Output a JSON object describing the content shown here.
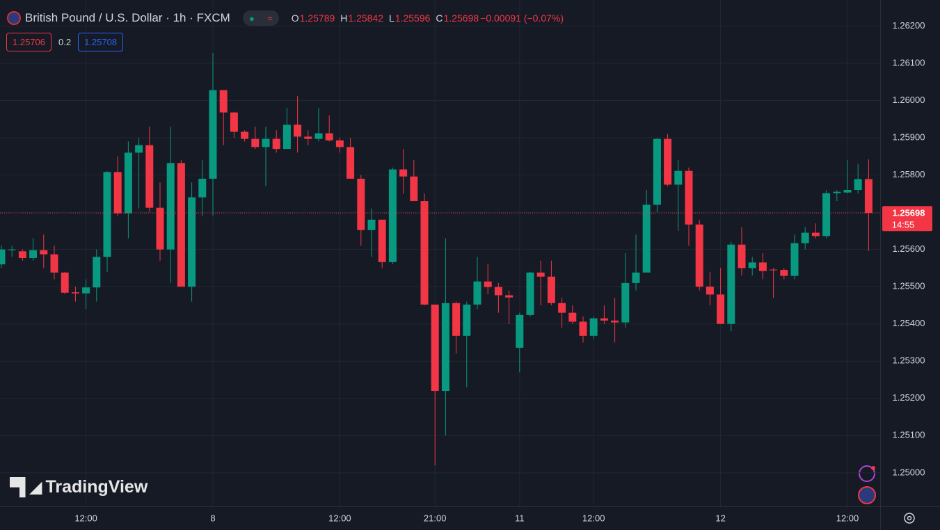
{
  "chart_data": {
    "type": "candlestick",
    "title": "British Pound / U.S. Dollar · 1h · FXCM",
    "legend": [
      {
        "label": "O",
        "value": 1.25789
      },
      {
        "label": "H",
        "value": 1.25842
      },
      {
        "label": "L",
        "value": 1.25596
      },
      {
        "label": "C",
        "value": 1.25698
      }
    ],
    "change": "−0.00091 (−0.07%)",
    "bid": 1.25706,
    "spread": 0.2,
    "ask": 1.25708,
    "last_price": 1.25698,
    "countdown": "14:55",
    "watermark": "TradingView",
    "up_color": "#089981",
    "down_color": "#f23645",
    "grid": true,
    "categories": [
      null,
      null,
      null,
      null,
      null,
      null,
      null,
      null,
      "12:00",
      null,
      null,
      null,
      null,
      null,
      null,
      null,
      null,
      null,
      null,
      null,
      "8",
      null,
      null,
      null,
      null,
      null,
      null,
      null,
      null,
      null,
      null,
      null,
      "12:00",
      null,
      null,
      null,
      null,
      null,
      null,
      null,
      null,
      "21:00",
      null,
      null,
      null,
      null,
      null,
      null,
      null,
      "11",
      null,
      null,
      null,
      null,
      null,
      null,
      "12:00",
      null,
      null,
      null,
      null,
      null,
      null,
      null,
      null,
      null,
      null,
      null,
      "12",
      null,
      null,
      null,
      null,
      null,
      null,
      null,
      null,
      null,
      null,
      null,
      "12:00",
      null,
      null
    ],
    "open": [
      1.2556,
      1.25598,
      1.25595,
      1.25577,
      1.25598,
      1.25587,
      1.25538,
      1.25485,
      1.25482,
      1.25498,
      1.2558,
      1.25808,
      1.25697,
      1.2586,
      1.2588,
      1.25712,
      1.256,
      1.25832,
      1.255,
      1.2574,
      1.2579,
      1.26028,
      1.25968,
      1.25916,
      1.25897,
      1.25875,
      1.25897,
      1.2587,
      1.25935,
      1.25903,
      1.25897,
      1.25912,
      1.25893,
      1.25875,
      1.2579,
      1.25652,
      1.2568,
      1.25566,
      1.25815,
      1.25796,
      1.2573,
      1.25452,
      1.2522,
      1.25456,
      1.25368,
      1.25452,
      1.25514,
      1.25499,
      1.25477,
      1.25336,
      1.25424,
      1.25538,
      1.25527,
      1.25456,
      1.2543,
      1.25406,
      1.25368,
      1.25415,
      1.25409,
      1.25404,
      1.2551,
      1.25538,
      1.2572,
      1.25897,
      1.25774,
      1.25811,
      1.25667,
      1.255,
      1.25479,
      1.254,
      1.25613,
      1.2555,
      1.25565,
      1.25546,
      1.25545,
      1.25529,
      1.25617,
      1.25645,
      1.25636,
      1.25751,
      1.25753,
      1.2576,
      1.25789
    ],
    "high": [
      1.2561,
      1.2561,
      1.256,
      1.2563,
      1.2564,
      1.2561,
      1.2554,
      1.255,
      1.2552,
      1.256,
      1.2581,
      1.2585,
      1.2589,
      1.259,
      1.2593,
      1.2578,
      1.2593,
      1.2584,
      1.2578,
      1.2584,
      1.26128,
      1.26028,
      1.2597,
      1.2592,
      1.2593,
      1.2593,
      1.2592,
      1.2598,
      1.26012,
      1.2592,
      1.2598,
      1.2596,
      1.259,
      1.259,
      1.258,
      1.2571,
      1.2568,
      1.2582,
      1.2587,
      1.2584,
      1.2575,
      1.2545,
      1.2563,
      1.2546,
      1.2546,
      1.2558,
      1.2556,
      1.2551,
      1.2549,
      1.2543,
      1.2554,
      1.2557,
      1.2557,
      1.2547,
      1.2545,
      1.2542,
      1.2542,
      1.2545,
      1.2547,
      1.2559,
      1.2564,
      1.2576,
      1.259,
      1.2591,
      1.2584,
      1.2582,
      1.2568,
      1.2554,
      1.2555,
      1.2562,
      1.2566,
      1.2558,
      1.2559,
      1.2555,
      1.2555,
      1.2564,
      1.2566,
      1.2567,
      1.2576,
      1.2576,
      1.2584,
      1.2583,
      1.25842
    ],
    "low": [
      1.2555,
      1.2558,
      1.2557,
      1.2557,
      1.2555,
      1.2552,
      1.2548,
      1.2546,
      1.2544,
      1.2546,
      1.2554,
      1.2569,
      1.2563,
      1.2571,
      1.257,
      1.2557,
      1.2551,
      1.255,
      1.2546,
      1.2569,
      1.2569,
      1.2588,
      1.259,
      1.2589,
      1.2587,
      1.2577,
      1.2586,
      1.2587,
      1.2586,
      1.2588,
      1.2589,
      1.2589,
      1.2586,
      1.2579,
      1.2561,
      1.2558,
      1.2555,
      1.2556,
      1.2575,
      1.2573,
      1.2545,
      1.2502,
      1.251,
      1.2532,
      1.2523,
      1.2544,
      1.2548,
      1.2543,
      1.254,
      1.2527,
      1.2542,
      1.2545,
      1.2545,
      1.2539,
      1.254,
      1.2535,
      1.2536,
      1.254,
      1.2535,
      1.2539,
      1.2549,
      1.2554,
      1.257,
      1.2577,
      1.2565,
      1.2561,
      1.2549,
      1.2545,
      1.254,
      1.2538,
      1.2553,
      1.2553,
      1.2552,
      1.2547,
      1.2552,
      1.2552,
      1.256,
      1.2563,
      1.2563,
      1.2573,
      1.2575,
      1.2575,
      1.25596
    ],
    "close": [
      1.256,
      1.256,
      1.25577,
      1.25598,
      1.25587,
      1.25538,
      1.25484,
      1.25482,
      1.25498,
      1.2558,
      1.25808,
      1.25697,
      1.2586,
      1.2588,
      1.25712,
      1.256,
      1.25832,
      1.255,
      1.2574,
      1.2579,
      1.26028,
      1.25968,
      1.25916,
      1.25897,
      1.25875,
      1.25897,
      1.2587,
      1.25935,
      1.25903,
      1.25897,
      1.25912,
      1.25893,
      1.25875,
      1.2579,
      1.25652,
      1.2568,
      1.25566,
      1.25815,
      1.25796,
      1.2573,
      1.25452,
      1.2522,
      1.25456,
      1.25368,
      1.25452,
      1.25514,
      1.25499,
      1.25477,
      1.25471,
      1.25424,
      1.25538,
      1.25527,
      1.25456,
      1.2543,
      1.25406,
      1.25368,
      1.25415,
      1.25409,
      1.25404,
      1.2551,
      1.25538,
      1.2572,
      1.25897,
      1.25774,
      1.25811,
      1.25667,
      1.255,
      1.25479,
      1.254,
      1.25613,
      1.2555,
      1.25565,
      1.25542,
      1.25544,
      1.25529,
      1.25617,
      1.25645,
      1.25636,
      1.25751,
      1.25755,
      1.2576,
      1.25789,
      1.25698
    ],
    "ylim": [
      1.2491,
      1.2627
    ],
    "yticks": [
      {
        "value": 1.262,
        "label": "1.26200"
      },
      {
        "value": 1.261,
        "label": "1.26100"
      },
      {
        "value": 1.26,
        "label": "1.26000"
      },
      {
        "value": 1.259,
        "label": "1.25900"
      },
      {
        "value": 1.258,
        "label": "1.25800"
      },
      {
        "value": 1.257,
        "label": "1.25700"
      },
      {
        "value": 1.256,
        "label": "1.25600"
      },
      {
        "value": 1.255,
        "label": "1.25500"
      },
      {
        "value": 1.254,
        "label": "1.25400"
      },
      {
        "value": 1.253,
        "label": "1.25300"
      },
      {
        "value": 1.252,
        "label": "1.25200"
      },
      {
        "value": 1.251,
        "label": "1.25100"
      },
      {
        "value": 1.25,
        "label": "1.25000"
      }
    ]
  }
}
